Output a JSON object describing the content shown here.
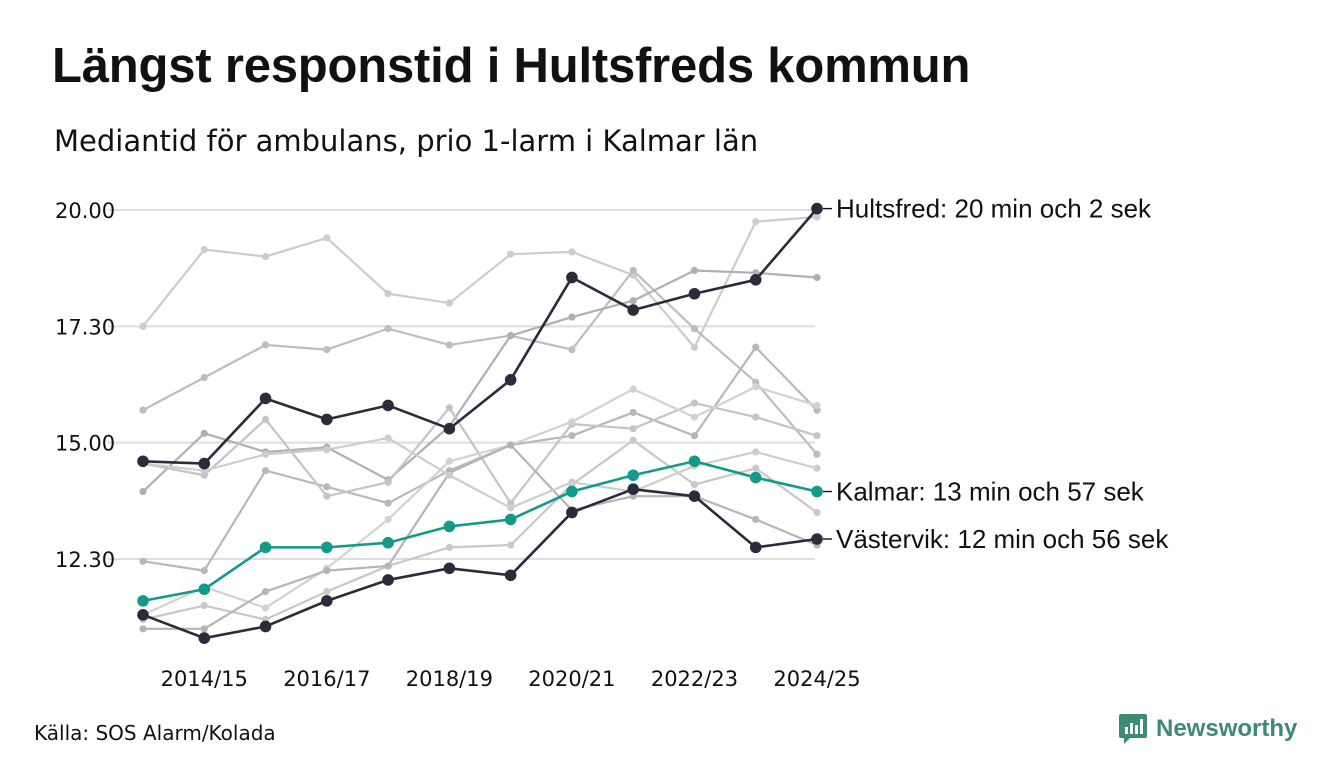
{
  "title": "Längst responstid i Hultsfreds kommun",
  "subtitle": "Mediantid för ambulans, prio 1-larm i Kalmar län",
  "source": "Källa: SOS Alarm/Kolada",
  "brand": {
    "name": "Newsworthy",
    "icon": "newsworthy-logo-icon",
    "color": "#3d8b76"
  },
  "chart_data": {
    "type": "line",
    "ylim": [
      10.0,
      20.3
    ],
    "yticks": [
      12.5,
      15.0,
      17.5,
      20.0
    ],
    "ytick_labels": [
      "12.30",
      "15.00",
      "17.30",
      "20.00"
    ],
    "categories": [
      "2013/14",
      "2014/15",
      "2015/16",
      "2016/17",
      "2017/18",
      "2018/19",
      "2019/20",
      "2020/21",
      "2021/22",
      "2022/23",
      "2023/24",
      "2024/25"
    ],
    "xtick_labels": [
      "",
      "2014/15",
      "",
      "2016/17",
      "",
      "2018/19",
      "",
      "2020/21",
      "",
      "2022/23",
      "",
      "2024/25"
    ],
    "background_series": [
      {
        "color": "#cccccc",
        "values": [
          17.5,
          19.15,
          19.0,
          19.4,
          18.2,
          18.0,
          19.05,
          19.1,
          18.6,
          17.05,
          19.75,
          19.85
        ]
      },
      {
        "color": "#bdbdbd",
        "values": [
          15.7,
          16.4,
          17.1,
          17.0,
          17.45,
          17.1,
          17.3,
          17.0,
          18.7,
          17.45,
          16.3,
          14.75
        ]
      },
      {
        "color": "#b0b0b0",
        "values": [
          13.95,
          15.2,
          14.8,
          14.9,
          14.2,
          15.35,
          17.3,
          17.7,
          18.05,
          18.7,
          18.65,
          18.55
        ]
      },
      {
        "color": "#b8b8b8",
        "values": [
          12.45,
          12.25,
          14.4,
          14.05,
          13.7,
          14.4,
          14.95,
          15.15,
          15.65,
          15.15,
          17.05,
          15.7
        ]
      },
      {
        "color": "#c4c4c4",
        "values": [
          14.55,
          14.3,
          15.5,
          13.85,
          14.15,
          15.75,
          13.7,
          15.4,
          15.3,
          15.85,
          15.55,
          15.15
        ]
      },
      {
        "color": "#d2d2d2",
        "values": [
          11.3,
          11.9,
          11.45,
          12.3,
          13.35,
          14.6,
          14.95,
          15.45,
          16.15,
          15.55,
          16.2,
          15.8
        ]
      },
      {
        "color": "#c8c8c8",
        "values": [
          11.2,
          11.5,
          11.2,
          11.8,
          12.35,
          12.75,
          12.8,
          14.1,
          15.05,
          14.1,
          14.45,
          13.5
        ]
      },
      {
        "color": "#b5b5b5",
        "values": [
          11.0,
          11.0,
          11.8,
          12.25,
          12.35,
          14.35,
          14.95,
          13.55,
          13.85,
          13.85,
          13.35,
          12.8
        ]
      },
      {
        "color": "#cdcdcd",
        "values": [
          14.55,
          14.4,
          14.75,
          14.85,
          15.1,
          14.3,
          13.6,
          14.15,
          13.95,
          14.5,
          14.8,
          14.45
        ]
      }
    ],
    "series": [
      {
        "name": "Hultsfred",
        "label": "Hultsfred: 20 min och 2 sek",
        "color": "#2b2b3b",
        "values": [
          14.6,
          14.55,
          15.95,
          15.5,
          15.8,
          15.3,
          16.35,
          18.55,
          17.85,
          18.2,
          18.5,
          20.03
        ]
      },
      {
        "name": "Kalmar",
        "label": "Kalmar: 13 min och 57 sek",
        "color": "#149a8a",
        "values": [
          11.6,
          11.85,
          12.75,
          12.75,
          12.85,
          13.2,
          13.35,
          13.95,
          14.3,
          14.6,
          14.25,
          13.95
        ]
      },
      {
        "name": "Västervik",
        "label": "Västervik: 12 min och 56 sek",
        "color": "#2b2b3b",
        "values": [
          11.3,
          10.8,
          11.05,
          11.6,
          12.05,
          12.3,
          12.15,
          13.5,
          14.0,
          13.85,
          12.75,
          12.93
        ]
      }
    ]
  }
}
